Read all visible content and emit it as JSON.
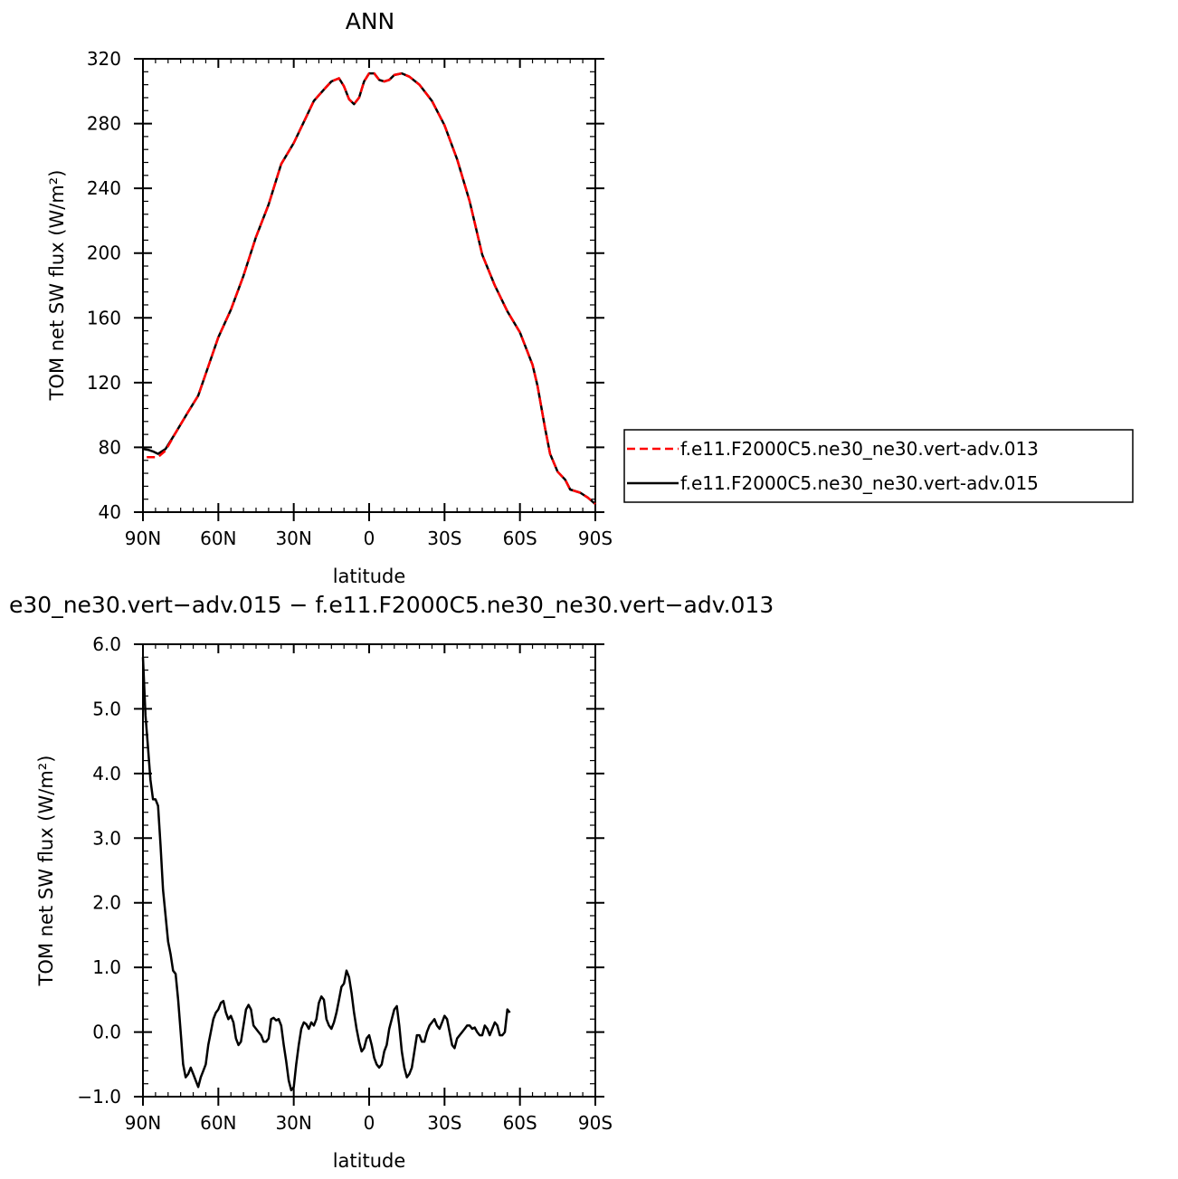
{
  "chart_data": [
    {
      "type": "line",
      "title": "ANN",
      "xlabel": "latitude",
      "ylabel": "TOM net SW flux (W/m²)",
      "xlim": [
        90,
        -90
      ],
      "ylim": [
        40,
        320
      ],
      "x_ticks": [
        "90N",
        "60N",
        "30N",
        "0",
        "30S",
        "60S",
        "90S"
      ],
      "y_ticks": [
        "40",
        "80",
        "120",
        "160",
        "200",
        "240",
        "280",
        "320"
      ],
      "legend_position": "right",
      "series": [
        {
          "name": "f.e11.F2000C5.ne30_ne30.vert-adv.013",
          "color": "#ff0000",
          "dash": "dashed",
          "points": [
            [
              88.5,
              74
            ],
            [
              84,
              74
            ],
            [
              81,
              78
            ],
            [
              77,
              89
            ],
            [
              72,
              102
            ],
            [
              68,
              112
            ],
            [
              64,
              130
            ],
            [
              60,
              148
            ],
            [
              55,
              165
            ],
            [
              50,
              186
            ],
            [
              45,
              210
            ],
            [
              40,
              230
            ],
            [
              35,
              255
            ],
            [
              30,
              268
            ],
            [
              26,
              281
            ],
            [
              22,
              294
            ],
            [
              18,
              301
            ],
            [
              15,
              306
            ],
            [
              12,
              308
            ],
            [
              10,
              303
            ],
            [
              8,
              295
            ],
            [
              6,
              292
            ],
            [
              4,
              296
            ],
            [
              2,
              306
            ],
            [
              0,
              311
            ],
            [
              -2,
              311
            ],
            [
              -4,
              307
            ],
            [
              -6,
              306
            ],
            [
              -8,
              307
            ],
            [
              -10,
              310
            ],
            [
              -13,
              311
            ],
            [
              -16,
              309
            ],
            [
              -20,
              304
            ],
            [
              -25,
              294
            ],
            [
              -30,
              279
            ],
            [
              -35,
              258
            ],
            [
              -40,
              232
            ],
            [
              -45,
              199
            ],
            [
              -50,
              180
            ],
            [
              -55,
              164
            ],
            [
              -60,
              151
            ],
            [
              -65,
              131
            ],
            [
              -67,
              118
            ],
            [
              -70,
              92
            ],
            [
              -72,
              76
            ],
            [
              -75,
              65
            ],
            [
              -78,
              60
            ],
            [
              -80,
              54
            ],
            [
              -84,
              52
            ],
            [
              -87,
              49
            ],
            [
              -90,
              45
            ]
          ]
        },
        {
          "name": "f.e11.F2000C5.ne30_ne30.vert-adv.015",
          "color": "#000000",
          "dash": "solid",
          "points": [
            [
              90,
              79
            ],
            [
              88,
              78.5
            ],
            [
              86,
              77.5
            ],
            [
              84,
              76
            ],
            [
              81,
              79
            ],
            [
              77,
              89
            ],
            [
              72,
              102
            ],
            [
              68,
              112
            ],
            [
              64,
              130
            ],
            [
              60,
              148
            ],
            [
              55,
              165
            ],
            [
              50,
              186
            ],
            [
              45,
              210
            ],
            [
              40,
              230
            ],
            [
              35,
              255
            ],
            [
              30,
              268
            ],
            [
              26,
              281
            ],
            [
              22,
              294
            ],
            [
              18,
              301
            ],
            [
              15,
              306
            ],
            [
              12,
              308
            ],
            [
              10,
              303
            ],
            [
              8,
              295
            ],
            [
              6,
              292
            ],
            [
              4,
              296
            ],
            [
              2,
              306
            ],
            [
              0,
              311
            ],
            [
              -2,
              311
            ],
            [
              -4,
              307
            ],
            [
              -6,
              306
            ],
            [
              -8,
              307
            ],
            [
              -10,
              310
            ],
            [
              -13,
              311
            ],
            [
              -16,
              309
            ],
            [
              -20,
              304
            ],
            [
              -25,
              294
            ],
            [
              -30,
              279
            ],
            [
              -35,
              258
            ],
            [
              -40,
              232
            ],
            [
              -45,
              199
            ],
            [
              -50,
              180
            ],
            [
              -55,
              164
            ],
            [
              -60,
              151
            ],
            [
              -65,
              131
            ],
            [
              -67,
              118
            ],
            [
              -70,
              92
            ],
            [
              -72,
              76
            ],
            [
              -75,
              65
            ],
            [
              -78,
              60
            ],
            [
              -80,
              54
            ],
            [
              -84,
              52
            ],
            [
              -87,
              49
            ],
            [
              -90,
              45
            ]
          ]
        }
      ]
    },
    {
      "type": "line",
      "title": "e30_ne30.vert−adv.015 − f.e11.F2000C5.ne30_ne30.vert−adv.013",
      "xlabel": "latitude",
      "ylabel": "TOM net SW flux (W/m²)",
      "xlim": [
        90,
        -90
      ],
      "ylim": [
        -1.0,
        6.0
      ],
      "x_ticks": [
        "90N",
        "60N",
        "30N",
        "0",
        "30S",
        "60S",
        "90S"
      ],
      "y_ticks": [
        "−1.0",
        "0.0",
        "1.0",
        "2.0",
        "3.0",
        "4.0",
        "5.0",
        "6.0"
      ],
      "series": [
        {
          "color": "#000000",
          "points": [
            [
              90,
              5.8
            ],
            [
              89,
              4.9
            ],
            [
              88,
              4.4
            ],
            [
              87,
              3.9
            ],
            [
              86,
              3.6
            ],
            [
              85,
              3.6
            ],
            [
              84,
              3.5
            ],
            [
              83,
              2.9
            ],
            [
              82,
              2.2
            ],
            [
              81,
              1.8
            ],
            [
              80,
              1.4
            ],
            [
              79,
              1.2
            ],
            [
              78,
              0.95
            ],
            [
              77,
              0.9
            ],
            [
              76,
              0.5
            ],
            [
              75,
              0.0
            ],
            [
              74,
              -0.5
            ],
            [
              73,
              -0.7
            ],
            [
              72,
              -0.65
            ],
            [
              71,
              -0.55
            ],
            [
              70,
              -0.65
            ],
            [
              69,
              -0.75
            ],
            [
              68,
              -0.85
            ],
            [
              67,
              -0.7
            ],
            [
              66,
              -0.6
            ],
            [
              65,
              -0.5
            ],
            [
              64,
              -0.2
            ],
            [
              63,
              0.0
            ],
            [
              62,
              0.2
            ],
            [
              61,
              0.3
            ],
            [
              60,
              0.35
            ],
            [
              59,
              0.45
            ],
            [
              58,
              0.48
            ],
            [
              57,
              0.3
            ],
            [
              56,
              0.2
            ],
            [
              55,
              0.25
            ],
            [
              54,
              0.15
            ],
            [
              53,
              -0.1
            ],
            [
              52,
              -0.2
            ],
            [
              51,
              -0.15
            ],
            [
              50,
              0.1
            ],
            [
              49,
              0.35
            ],
            [
              48,
              0.42
            ],
            [
              47,
              0.35
            ],
            [
              46,
              0.1
            ],
            [
              45,
              0.05
            ],
            [
              44,
              0.0
            ],
            [
              43,
              -0.05
            ],
            [
              42,
              -0.15
            ],
            [
              41,
              -0.15
            ],
            [
              40,
              -0.1
            ],
            [
              39,
              0.2
            ],
            [
              38,
              0.22
            ],
            [
              37,
              0.18
            ],
            [
              36,
              0.2
            ],
            [
              35,
              0.1
            ],
            [
              34,
              -0.2
            ],
            [
              33,
              -0.45
            ],
            [
              32,
              -0.75
            ],
            [
              31,
              -0.9
            ],
            [
              30,
              -0.85
            ],
            [
              29,
              -0.5
            ],
            [
              28,
              -0.2
            ],
            [
              27,
              0.05
            ],
            [
              26,
              0.15
            ],
            [
              25,
              0.12
            ],
            [
              24,
              0.05
            ],
            [
              23,
              0.15
            ],
            [
              22,
              0.1
            ],
            [
              21,
              0.2
            ],
            [
              20,
              0.45
            ],
            [
              19,
              0.55
            ],
            [
              18,
              0.5
            ],
            [
              17,
              0.2
            ],
            [
              16,
              0.1
            ],
            [
              15,
              0.05
            ],
            [
              14,
              0.15
            ],
            [
              13,
              0.3
            ],
            [
              12,
              0.5
            ],
            [
              11,
              0.7
            ],
            [
              10,
              0.75
            ],
            [
              9,
              0.95
            ],
            [
              8,
              0.85
            ],
            [
              7,
              0.6
            ],
            [
              6,
              0.3
            ],
            [
              5,
              0.05
            ],
            [
              4,
              -0.15
            ],
            [
              3,
              -0.3
            ],
            [
              2,
              -0.25
            ],
            [
              1,
              -0.1
            ],
            [
              0,
              -0.05
            ],
            [
              -1,
              -0.2
            ],
            [
              -2,
              -0.4
            ],
            [
              -3,
              -0.5
            ],
            [
              -4,
              -0.55
            ],
            [
              -5,
              -0.5
            ],
            [
              -6,
              -0.3
            ],
            [
              -7,
              -0.2
            ],
            [
              -8,
              0.05
            ],
            [
              -9,
              0.2
            ],
            [
              -10,
              0.35
            ],
            [
              -11,
              0.4
            ],
            [
              -12,
              0.1
            ],
            [
              -13,
              -0.3
            ],
            [
              -14,
              -0.55
            ],
            [
              -15,
              -0.7
            ],
            [
              -16,
              -0.65
            ],
            [
              -17,
              -0.55
            ],
            [
              -18,
              -0.3
            ],
            [
              -19,
              -0.05
            ],
            [
              -20,
              -0.05
            ],
            [
              -21,
              -0.15
            ],
            [
              -22,
              -0.15
            ],
            [
              -23,
              0.0
            ],
            [
              -24,
              0.1
            ],
            [
              -25,
              0.15
            ],
            [
              -26,
              0.2
            ],
            [
              -27,
              0.1
            ],
            [
              -28,
              0.05
            ],
            [
              -29,
              0.15
            ],
            [
              -30,
              0.25
            ],
            [
              -31,
              0.2
            ],
            [
              -32,
              0.0
            ],
            [
              -33,
              -0.2
            ],
            [
              -34,
              -0.25
            ],
            [
              -35,
              -0.1
            ],
            [
              -36,
              -0.05
            ],
            [
              -37,
              0.0
            ],
            [
              -38,
              0.05
            ],
            [
              -39,
              0.1
            ],
            [
              -40,
              0.1
            ],
            [
              -41,
              0.05
            ],
            [
              -42,
              0.07
            ],
            [
              -43,
              0.0
            ],
            [
              -44,
              -0.05
            ],
            [
              -45,
              -0.05
            ],
            [
              -46,
              0.1
            ],
            [
              -47,
              0.05
            ],
            [
              -48,
              -0.05
            ],
            [
              -49,
              0.05
            ],
            [
              -50,
              0.15
            ],
            [
              -51,
              0.1
            ],
            [
              -52,
              -0.05
            ],
            [
              -53,
              -0.05
            ],
            [
              -54,
              0.0
            ],
            [
              -55,
              0.35
            ],
            [
              -56,
              0.3
            ]
          ]
        }
      ]
    }
  ]
}
